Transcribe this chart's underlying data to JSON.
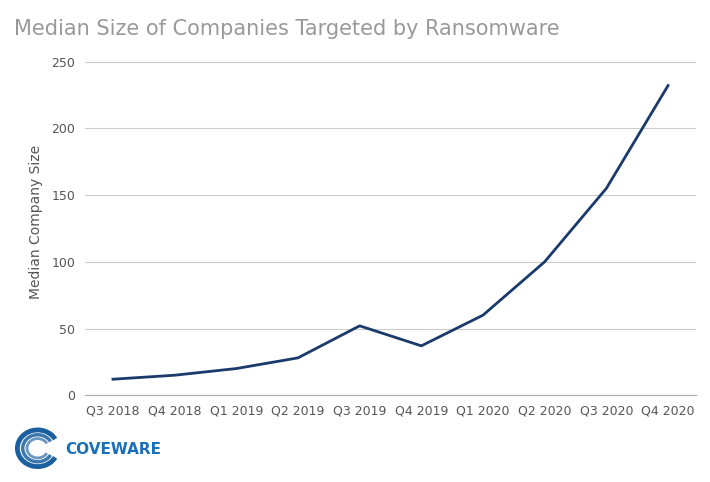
{
  "title": "Median Size of Companies Targeted by Ransomware",
  "xlabel": "",
  "ylabel": "Median Company Size",
  "categories": [
    "Q3 2018",
    "Q4 2018",
    "Q1 2019",
    "Q2 2019",
    "Q3 2019",
    "Q4 2019",
    "Q1 2020",
    "Q2 2020",
    "Q3 2020",
    "Q4 2020"
  ],
  "values": [
    12,
    15,
    20,
    28,
    52,
    37,
    60,
    100,
    155,
    232
  ],
  "line_color": "#1a3a6b",
  "line_width": 2.0,
  "ylim": [
    0,
    260
  ],
  "yticks": [
    0,
    50,
    100,
    150,
    200,
    250
  ],
  "title_fontsize": 15,
  "label_fontsize": 10,
  "tick_fontsize": 9,
  "title_color": "#999999",
  "tick_color": "#555555",
  "grid_color": "#cccccc",
  "background_color": "#ffffff",
  "logo_text": "COVEWARE",
  "logo_text_color": "#1a6fba",
  "logo_circle_color": "#1a5fa0"
}
